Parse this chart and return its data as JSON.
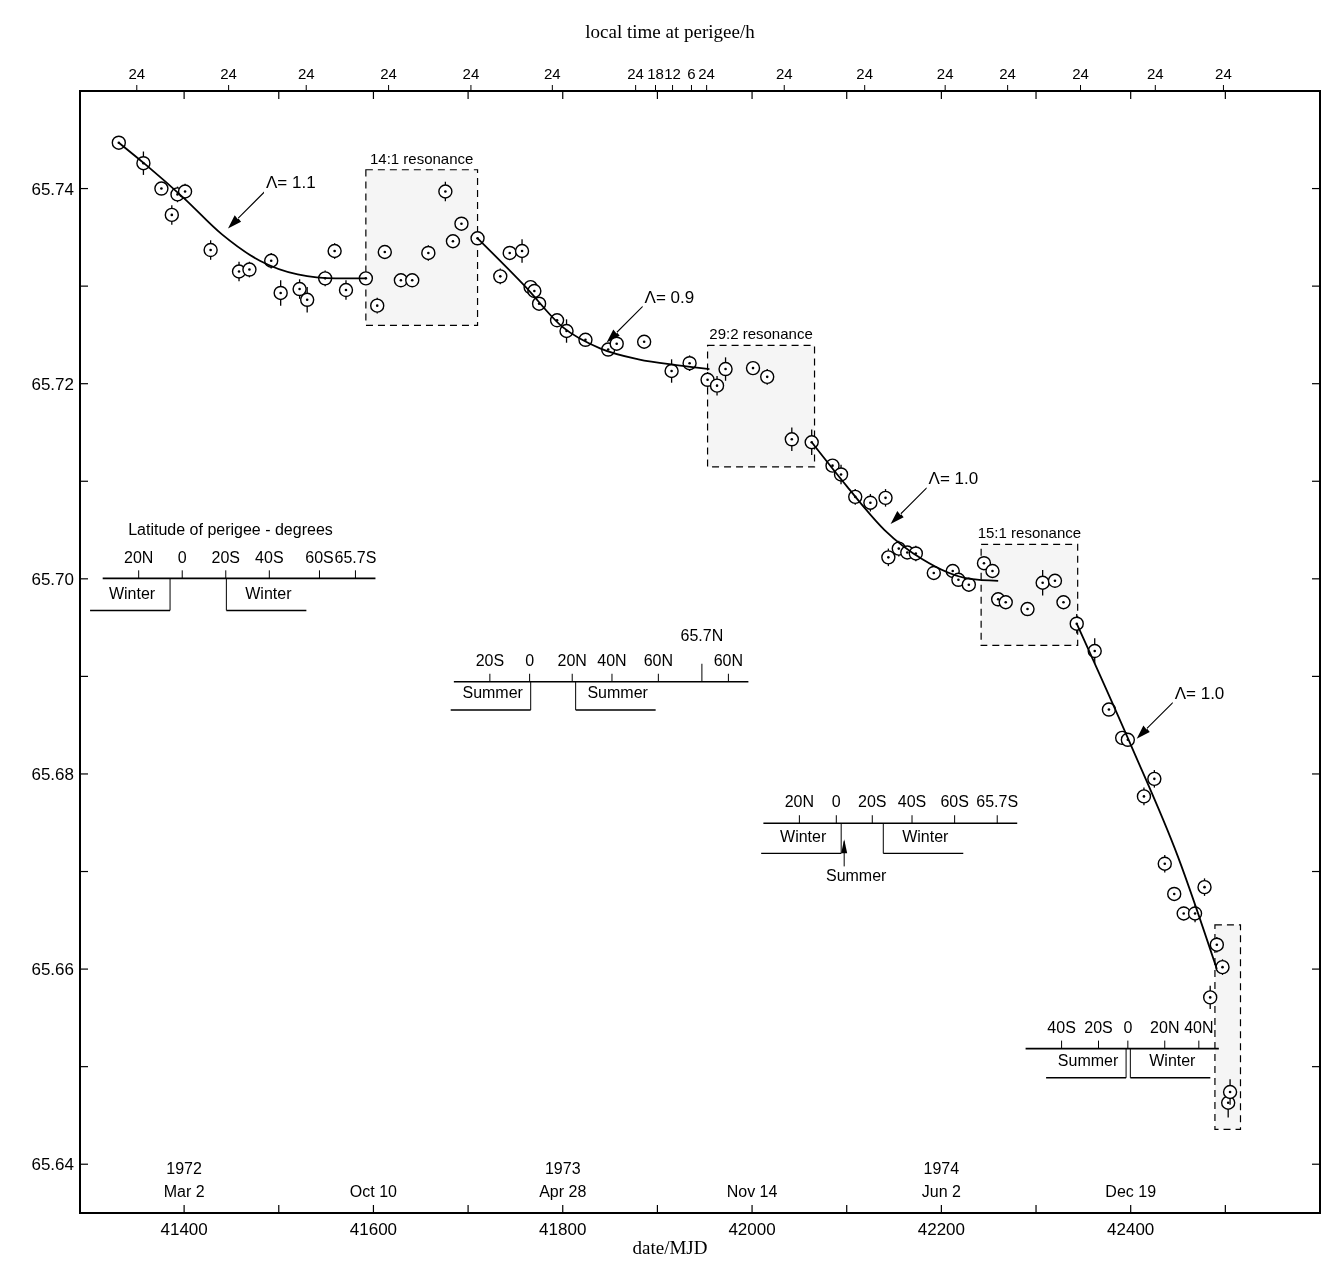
{
  "chart_data": {
    "type": "scatter",
    "xlabel": "date/MJD",
    "x2label": "local time at perigee/h",
    "marker": "circle",
    "xlim": [
      41290,
      42600
    ],
    "ylim": [
      65.635,
      65.75
    ],
    "xticks": [
      41400,
      {
        "value": 41500,
        "label": null
      },
      41600,
      {
        "value": 41700,
        "label": null
      },
      41800,
      {
        "value": 41900,
        "label": null
      },
      42000,
      {
        "value": 42100,
        "label": null
      },
      42200,
      {
        "value": 42300,
        "label": null
      },
      42400,
      {
        "value": 42500,
        "label": null
      }
    ],
    "yticks": [
      {
        "value": 65.64,
        "label": "65.64"
      },
      {
        "value": 65.65,
        "label": null
      },
      {
        "value": 65.66,
        "label": "65.66"
      },
      {
        "value": 65.67,
        "label": null
      },
      {
        "value": 65.68,
        "label": "65.68"
      },
      {
        "value": 65.69,
        "label": null
      },
      {
        "value": 65.7,
        "label": "65.70"
      },
      {
        "value": 65.71,
        "label": null
      },
      {
        "value": 65.72,
        "label": "65.72"
      },
      {
        "value": 65.73,
        "label": null
      },
      {
        "value": 65.74,
        "label": "65.74"
      }
    ],
    "series": [
      {
        "color": "#000000",
        "x": [
          41331,
          41357,
          41376,
          41387,
          41393,
          41401,
          41428,
          41458,
          41469,
          41492,
          41502,
          41522,
          41530,
          41549,
          41559,
          41571,
          41592,
          41604,
          41612,
          41629,
          41641,
          41658,
          41676,
          41684,
          41693,
          41710,
          41734,
          41744,
          41757,
          41766,
          41770,
          41775,
          41794,
          41804,
          41824,
          41848,
          41857,
          41886,
          41915,
          41934,
          41953,
          41963,
          41972,
          42001,
          42016,
          42042,
          42063,
          42085,
          42094,
          42109,
          42125,
          42141,
          42144,
          42155,
          42164,
          42173,
          42192,
          42212,
          42218,
          42229,
          42245,
          42254,
          42260,
          42268,
          42291,
          42307,
          42320,
          42329,
          42343,
          42362,
          42377,
          42391,
          42397,
          42414,
          42425,
          42436,
          42446,
          42456,
          42468,
          42478,
          42484,
          42491,
          42497,
          42503,
          42505
        ],
        "values": [
          65.7447,
          65.7426,
          65.74,
          65.7373,
          65.7394,
          65.7397,
          65.7337,
          65.7315,
          65.7317,
          65.7326,
          65.7293,
          65.7297,
          65.7286,
          65.7308,
          65.7336,
          65.7296,
          65.7308,
          65.728,
          65.7335,
          65.7306,
          65.7306,
          65.7334,
          65.7397,
          65.7346,
          65.7364,
          65.7349,
          65.731,
          65.7334,
          65.7336,
          65.7299,
          65.7295,
          65.7282,
          65.7265,
          65.7254,
          65.7245,
          65.7235,
          65.7241,
          65.7243,
          65.7213,
          65.7221,
          65.7204,
          65.7198,
          65.7215,
          65.7216,
          65.7207,
          65.7143,
          65.714,
          65.7116,
          65.7107,
          65.7084,
          65.7078,
          65.7083,
          65.7022,
          65.7031,
          65.7027,
          65.7026,
          65.7006,
          65.7008,
          65.6999,
          65.6994,
          65.7016,
          65.7008,
          65.6979,
          65.6976,
          65.6969,
          65.6996,
          65.6998,
          65.6976,
          65.6954,
          65.6926,
          65.6866,
          65.6837,
          65.6835,
          65.6777,
          65.6795,
          65.6708,
          65.6677,
          65.6657,
          65.6657,
          65.6684,
          65.6571,
          65.6625,
          65.6602,
          65.6463,
          65.6474
        ],
        "errors": [
          null,
          0.0012,
          null,
          0.001,
          0.0008,
          0.0008,
          0.001,
          0.001,
          0.0008,
          0.0008,
          0.0013,
          0.001,
          0.0013,
          0.0008,
          0.0008,
          0.001,
          null,
          0.0008,
          0.0007,
          0.0007,
          null,
          0.0008,
          0.001,
          null,
          null,
          null,
          0.0008,
          null,
          0.0012,
          null,
          0.0005,
          0.0006,
          0.0006,
          0.0012,
          0.0006,
          0.0006,
          0.0006,
          0.0006,
          0.0012,
          0.0008,
          0.0008,
          0.001,
          0.0012,
          0.0007,
          0.0008,
          0.0012,
          0.0013,
          0.0006,
          0.001,
          0.0008,
          0.0009,
          0.0009,
          0.0009,
          0.0008,
          0.0005,
          0.0008,
          0.0005,
          0.0007,
          null,
          0.0007,
          0.0007,
          0.0007,
          0.0007,
          0.0007,
          0.0006,
          0.0013,
          0.0007,
          0.0007,
          0.001,
          0.0013,
          0.0006,
          0.0007,
          0.0005,
          0.0009,
          0.0009,
          0.0009,
          0.0007,
          0.0007,
          0.0009,
          0.0009,
          0.0012,
          0.0008,
          0.0008,
          0.0015,
          0.0013
        ]
      },
      {
        "type": "line",
        "marker": "none",
        "color": "#000000",
        "line_style": "solid",
        "x": [
          41331,
          41360,
          41400,
          41440,
          41480,
          41520,
          41560,
          41592
        ],
        "values": [
          65.7447,
          65.7424,
          65.739,
          65.7353,
          65.7326,
          65.7312,
          65.7308,
          65.7308
        ]
      },
      {
        "type": "line",
        "marker": "none",
        "color": "#000000",
        "line_style": "solid",
        "x": [
          41710,
          41760,
          41800,
          41840,
          41880,
          41920,
          41955
        ],
        "values": [
          65.7349,
          65.73,
          65.7258,
          65.7236,
          65.7225,
          65.7219,
          65.7215
        ]
      },
      {
        "type": "line",
        "marker": "none",
        "color": "#000000",
        "line_style": "solid",
        "x": [
          42063,
          42100,
          42140,
          42180,
          42230,
          42260
        ],
        "values": [
          65.714,
          65.7095,
          65.705,
          65.702,
          65.7,
          65.6998
        ]
      },
      {
        "type": "line",
        "marker": "none",
        "color": "#000000",
        "line_style": "solid",
        "x": [
          42343,
          42400,
          42450,
          42491
        ],
        "values": [
          65.6954,
          65.683,
          65.6715,
          65.66
        ]
      }
    ],
    "bands": [
      {
        "axis": "x",
        "from": 41592,
        "to": 41710,
        "label": "14:1 resonance"
      },
      {
        "axis": "x",
        "from": 41953,
        "to": 42066,
        "label": "29:2 resonance"
      },
      {
        "axis": "x",
        "from": 42242,
        "to": 42344,
        "label": "15:1 resonance"
      },
      {
        "axis": "x",
        "from": 42489,
        "to": 42516
      }
    ],
    "annotations": [
      "Latitude of perigee - degrees",
      "20N",
      "0",
      "20S",
      "40S",
      "60S",
      "65.7S",
      "Winter",
      "Winter",
      "65.7N",
      "20S",
      "0",
      "20N",
      "40N",
      "60N",
      "60N",
      "Summer",
      "Summer",
      "20N",
      "0",
      "20S",
      "40S",
      "60S",
      "65.7S",
      "Winter",
      "Winter",
      "Summer",
      "40S",
      "20S",
      "0",
      "20N",
      "40N",
      "Summer",
      "Winter",
      "1972",
      "1973",
      "1974",
      "Mar 2",
      "Oct 10",
      "Apr 28",
      "Nov 14",
      "Jun 2",
      "Dec 19",
      "24",
      "24",
      "24",
      "24",
      "24",
      "24",
      "24",
      "18",
      "12",
      "6",
      "24",
      "24",
      "24",
      "24",
      "24",
      "24",
      "24",
      "24",
      "Λ= 1.1",
      "Λ= 0.9",
      "Λ= 1.0",
      "Λ= 1.0"
    ]
  }
}
